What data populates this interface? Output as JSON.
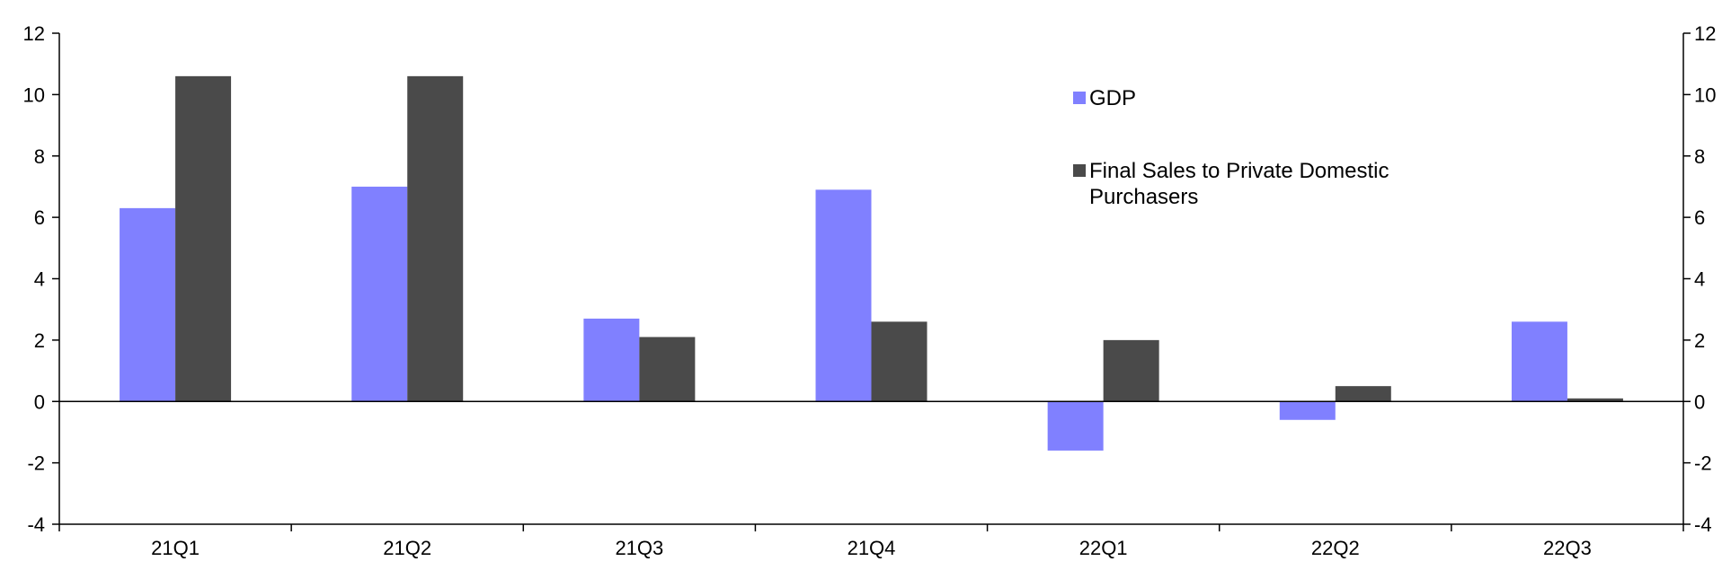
{
  "chart_data": {
    "type": "bar",
    "categories": [
      "21Q1",
      "21Q2",
      "21Q3",
      "21Q4",
      "22Q1",
      "22Q2",
      "22Q3"
    ],
    "series": [
      {
        "name": "GDP",
        "color": "#8080ff",
        "values": [
          6.3,
          7.0,
          2.7,
          6.9,
          -1.6,
          -0.6,
          2.6
        ]
      },
      {
        "name": "Final Sales to Private Domestic Purchasers",
        "legend_lines": [
          "Final Sales to Private Domestic",
          "Purchasers"
        ],
        "color": "#4a4a4a",
        "values": [
          10.6,
          10.6,
          2.1,
          2.6,
          2.0,
          0.5,
          0.1
        ]
      }
    ],
    "y_ticks": [
      "12",
      "10",
      "8",
      "6",
      "4",
      "2",
      "0",
      "-2",
      "-4"
    ],
    "ylim": [
      -4,
      12
    ],
    "y_step": 2,
    "dual_y_axis": true,
    "legend_position": "top-center-right",
    "grid": false,
    "title": "",
    "xlabel": "",
    "ylabel": ""
  }
}
